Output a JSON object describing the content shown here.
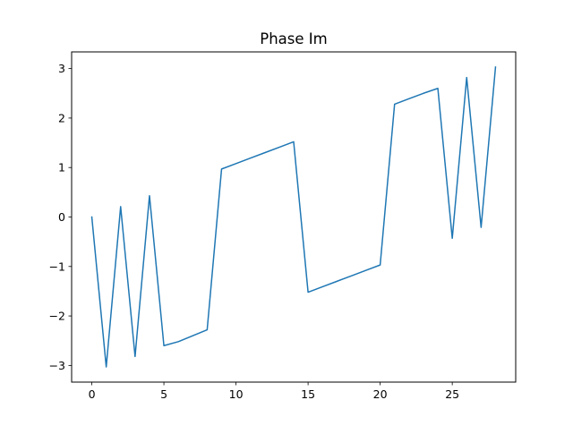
{
  "chart_data": {
    "type": "line",
    "title": "Phase Im",
    "xlabel": "",
    "ylabel": "",
    "xlim": [
      -1.4,
      29.4
    ],
    "ylim": [
      -3.3369,
      3.3369
    ],
    "xticks": [
      0,
      5,
      10,
      15,
      20,
      25
    ],
    "yticks": [
      -3,
      -2,
      -1,
      0,
      1,
      2,
      3
    ],
    "xtick_labels": [
      "0",
      "5",
      "10",
      "15",
      "20",
      "25"
    ],
    "ytick_labels": [
      "−3",
      "−2",
      "−1",
      "0",
      "1",
      "2",
      "3"
    ],
    "grid": false,
    "series": [
      {
        "color": "#1f77b4",
        "x": [
          0,
          1,
          2,
          3,
          4,
          5,
          6,
          7,
          8,
          9,
          10,
          11,
          12,
          13,
          14,
          15,
          16,
          17,
          18,
          19,
          20,
          21,
          22,
          23,
          24,
          25,
          26,
          27,
          28
        ],
        "y": [
          0.0,
          -3.03,
          0.21,
          -2.82,
          0.43,
          -2.6,
          -2.52,
          -2.4,
          -2.28,
          0.97,
          1.08,
          1.19,
          1.3,
          1.41,
          1.52,
          -1.52,
          -1.41,
          -1.3,
          -1.19,
          -1.08,
          -0.97,
          2.28,
          2.39,
          2.5,
          2.6,
          -0.43,
          2.82,
          -0.21,
          3.03
        ]
      }
    ]
  }
}
